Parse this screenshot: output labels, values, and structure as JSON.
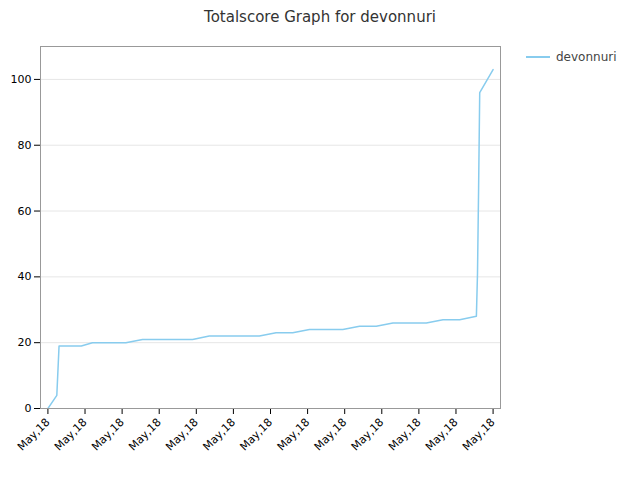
{
  "chart_data": {
    "type": "line",
    "title": "Totalscore Graph for devonnuri",
    "x": [
      0,
      0.24,
      0.3,
      0.6,
      0.9,
      1.2,
      1.65,
      2.1,
      2.55,
      3,
      3.45,
      3.9,
      4.35,
      4.8,
      5.25,
      5.7,
      6.15,
      6.6,
      7.05,
      7.5,
      7.95,
      8.4,
      8.85,
      9.3,
      9.75,
      10.2,
      10.65,
      11.1,
      11.55,
      11.58,
      11.61,
      11.64,
      12
    ],
    "series": [
      {
        "name": "devonnuri",
        "color": "#88ccee",
        "values": [
          0,
          4,
          19,
          19,
          19,
          20,
          20,
          20,
          21,
          21,
          21,
          21,
          22,
          22,
          22,
          22,
          23,
          23,
          24,
          24,
          24,
          25,
          25,
          26,
          26,
          26,
          27,
          27,
          28,
          41,
          67,
          96,
          103
        ]
      }
    ],
    "xlim": [
      -0.2,
      12.2
    ],
    "xticks": [
      {
        "value": 0,
        "label": "May,18"
      },
      {
        "value": 1,
        "label": "May,18"
      },
      {
        "value": 2,
        "label": "May,18"
      },
      {
        "value": 3,
        "label": "May,18"
      },
      {
        "value": 4,
        "label": "May,18"
      },
      {
        "value": 5,
        "label": "May,18"
      },
      {
        "value": 6,
        "label": "May,18"
      },
      {
        "value": 7,
        "label": "May,18"
      },
      {
        "value": 8,
        "label": "May,18"
      },
      {
        "value": 9,
        "label": "May,18"
      },
      {
        "value": 10,
        "label": "May,18"
      },
      {
        "value": 11,
        "label": "May,18"
      },
      {
        "value": 12,
        "label": "May,18"
      }
    ],
    "ylim": [
      0,
      110
    ],
    "yticks": [
      0,
      20,
      40,
      60,
      80,
      100
    ],
    "grid": true,
    "legend": "right"
  }
}
